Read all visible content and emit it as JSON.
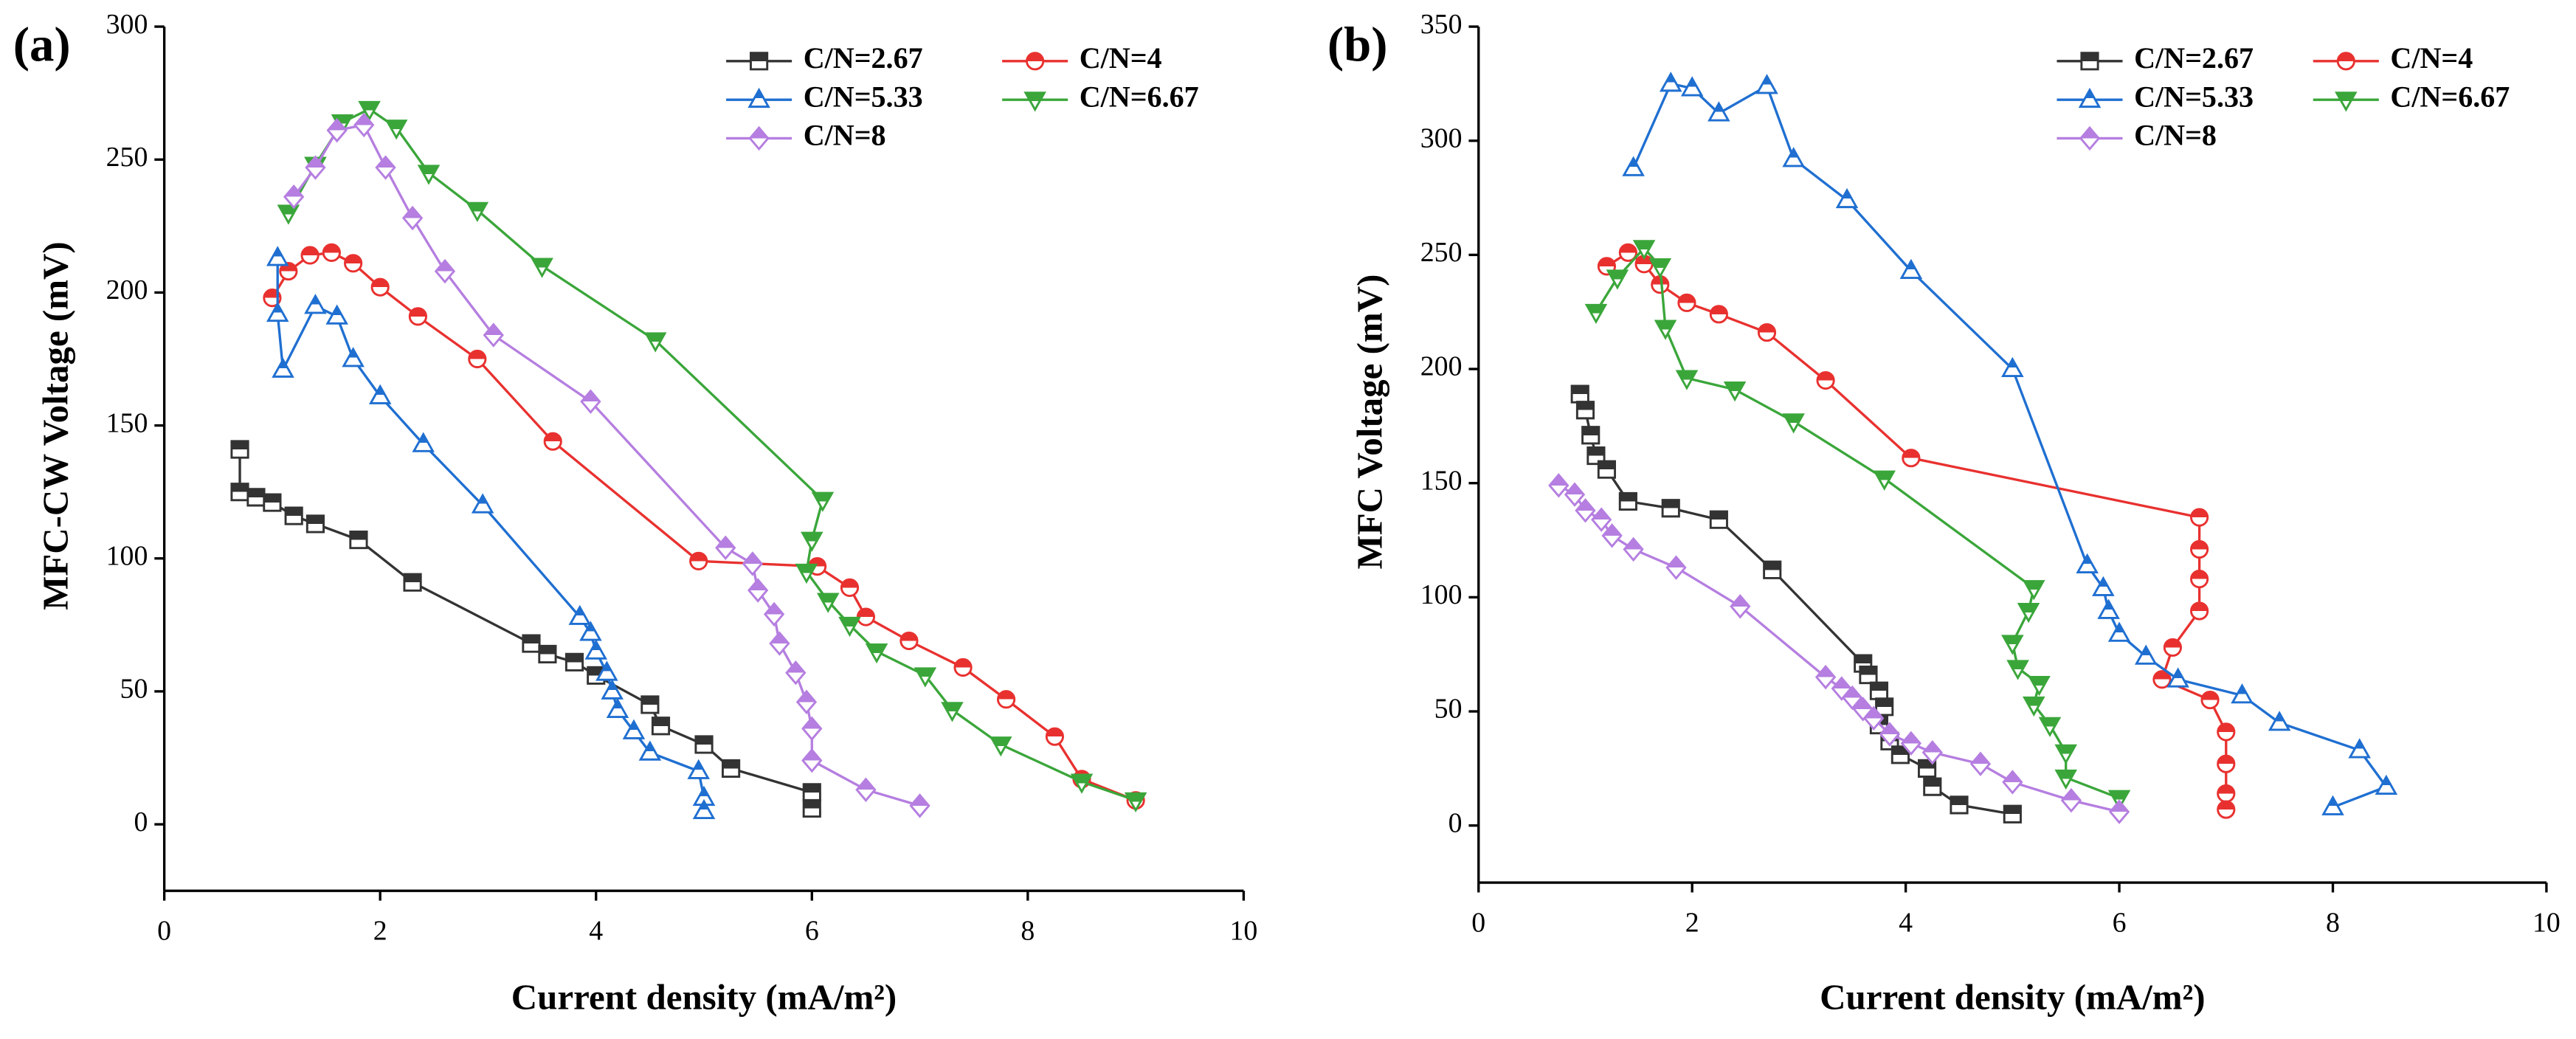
{
  "chart_data": [
    {
      "type": "line",
      "panel_label": "(a)",
      "xlabel": "Current density (mA/m²)",
      "ylabel": "MFC-CW Voltage (mV)",
      "xlim": [
        0,
        10
      ],
      "ylim": [
        -25,
        300
      ],
      "xticks": [
        0,
        2,
        4,
        6,
        8,
        10
      ],
      "yticks": [
        0,
        50,
        100,
        150,
        200,
        250,
        300
      ],
      "series": [
        {
          "name": "C/N=2.67",
          "color": "#333333",
          "marker": "square",
          "x": [
            0.7,
            0.7,
            0.85,
            1.0,
            1.2,
            1.4,
            1.8,
            2.3,
            3.4,
            3.55,
            3.8,
            4.0,
            4.5,
            4.6,
            5.0,
            5.25,
            6.0,
            6.0
          ],
          "values": [
            141,
            125,
            123,
            121,
            116,
            113,
            107,
            91,
            68,
            64,
            61,
            56,
            45,
            37,
            30,
            21,
            12,
            6
          ]
        },
        {
          "name": "C/N=4",
          "color": "#e8312f",
          "marker": "circle",
          "x": [
            1.0,
            1.15,
            1.35,
            1.55,
            1.75,
            2.0,
            2.35,
            2.9,
            3.6,
            4.95,
            6.05,
            6.35,
            6.5,
            6.9,
            7.4,
            7.8,
            8.25,
            8.5,
            9.0
          ],
          "values": [
            198,
            208,
            214,
            215,
            211,
            202,
            191,
            175,
            144,
            99,
            97,
            89,
            78,
            69,
            59,
            47,
            33,
            17,
            9
          ]
        },
        {
          "name": "C/N=5.33",
          "color": "#1f6fd1",
          "marker": "triangle-up",
          "x": [
            1.05,
            1.05,
            1.1,
            1.4,
            1.6,
            1.75,
            2.0,
            2.4,
            2.95,
            3.85,
            3.95,
            4.0,
            4.1,
            4.15,
            4.2,
            4.35,
            4.5,
            4.95,
            5.0,
            5.0
          ],
          "values": [
            213,
            192,
            171,
            195,
            191,
            175,
            161,
            143,
            120,
            78,
            72,
            65,
            57,
            50,
            43,
            35,
            27,
            20,
            10,
            5
          ]
        },
        {
          "name": "C/N=6.67",
          "color": "#3aa63a",
          "marker": "triangle-down",
          "x": [
            1.15,
            1.4,
            1.65,
            1.9,
            2.15,
            2.45,
            2.9,
            3.5,
            4.55,
            6.1,
            6.0,
            5.95,
            6.15,
            6.35,
            6.6,
            7.05,
            7.3,
            7.75,
            8.5,
            9.0
          ],
          "values": [
            230,
            248,
            264,
            269,
            262,
            245,
            231,
            210,
            182,
            122,
            107,
            95,
            84,
            75,
            65,
            56,
            43,
            30,
            16,
            9
          ]
        },
        {
          "name": "C/N=8",
          "color": "#b57ee0",
          "marker": "diamond",
          "x": [
            1.2,
            1.4,
            1.6,
            1.85,
            2.05,
            2.3,
            2.6,
            3.05,
            3.95,
            5.2,
            5.45,
            5.5,
            5.65,
            5.7,
            5.85,
            5.95,
            6.0,
            6.0,
            6.5,
            7.0
          ],
          "values": [
            236,
            247,
            261,
            263,
            247,
            228,
            208,
            184,
            159,
            104,
            98,
            88,
            79,
            68,
            57,
            46,
            36,
            24,
            13,
            7
          ]
        }
      ]
    },
    {
      "type": "line",
      "panel_label": "(b)",
      "xlabel": "Current density (mA/m²)",
      "ylabel": "MFC Voltage (mV)",
      "xlim": [
        0,
        10
      ],
      "ylim": [
        -25,
        350
      ],
      "xticks": [
        0,
        2,
        4,
        6,
        8,
        10
      ],
      "yticks": [
        0,
        50,
        100,
        150,
        200,
        250,
        300,
        350
      ],
      "series": [
        {
          "name": "C/N=2.67",
          "color": "#333333",
          "marker": "square",
          "x": [
            0.95,
            1.0,
            1.05,
            1.1,
            1.2,
            1.4,
            1.8,
            2.25,
            2.75,
            3.6,
            3.65,
            3.75,
            3.8,
            3.75,
            3.85,
            3.95,
            4.2,
            4.25,
            4.5,
            5.0
          ],
          "values": [
            189,
            182,
            171,
            162,
            156,
            142,
            139,
            134,
            112,
            71,
            66,
            59,
            52,
            44,
            37,
            31,
            25,
            17,
            9,
            5
          ]
        },
        {
          "name": "C/N=4",
          "color": "#e8312f",
          "marker": "circle",
          "x": [
            1.2,
            1.4,
            1.55,
            1.7,
            1.95,
            2.25,
            2.7,
            3.25,
            4.05,
            6.75,
            6.75,
            6.75,
            6.75,
            6.5,
            6.4,
            6.85,
            7.0,
            7.0,
            7.0,
            7.0
          ],
          "values": [
            245,
            251,
            246,
            237,
            229,
            224,
            216,
            195,
            161,
            135,
            121,
            108,
            94,
            78,
            64,
            55,
            41,
            27,
            14,
            7
          ]
        },
        {
          "name": "C/N=5.33",
          "color": "#1f6fd1",
          "marker": "triangle-up",
          "x": [
            1.45,
            1.8,
            2.0,
            2.25,
            2.7,
            2.95,
            3.45,
            4.05,
            5.0,
            5.7,
            5.85,
            5.9,
            6.0,
            6.25,
            6.55,
            7.15,
            7.5,
            8.25,
            8.5,
            8.0
          ],
          "values": [
            288,
            325,
            323,
            312,
            324,
            292,
            274,
            243,
            200,
            114,
            104,
            94,
            84,
            74,
            64,
            57,
            45,
            33,
            17,
            8
          ]
        },
        {
          "name": "C/N=6.67",
          "color": "#3aa63a",
          "marker": "triangle-down",
          "x": [
            1.1,
            1.3,
            1.55,
            1.7,
            1.75,
            1.95,
            2.4,
            2.95,
            3.8,
            5.2,
            5.15,
            5.0,
            5.05,
            5.25,
            5.2,
            5.35,
            5.5,
            5.5,
            6.0
          ],
          "values": [
            225,
            240,
            253,
            245,
            218,
            196,
            191,
            177,
            152,
            104,
            94,
            80,
            69,
            62,
            53,
            44,
            32,
            21,
            12
          ]
        },
        {
          "name": "C/N=8",
          "color": "#b57ee0",
          "marker": "diamond",
          "x": [
            0.75,
            0.9,
            1.0,
            1.15,
            1.25,
            1.45,
            1.85,
            2.45,
            3.25,
            3.4,
            3.5,
            3.6,
            3.7,
            3.85,
            4.05,
            4.25,
            4.7,
            5.0,
            5.55,
            6.0
          ],
          "values": [
            149,
            145,
            138,
            134,
            127,
            121,
            113,
            96,
            65,
            60,
            56,
            51,
            47,
            40,
            36,
            32,
            27,
            19,
            11,
            6
          ]
        }
      ]
    }
  ]
}
